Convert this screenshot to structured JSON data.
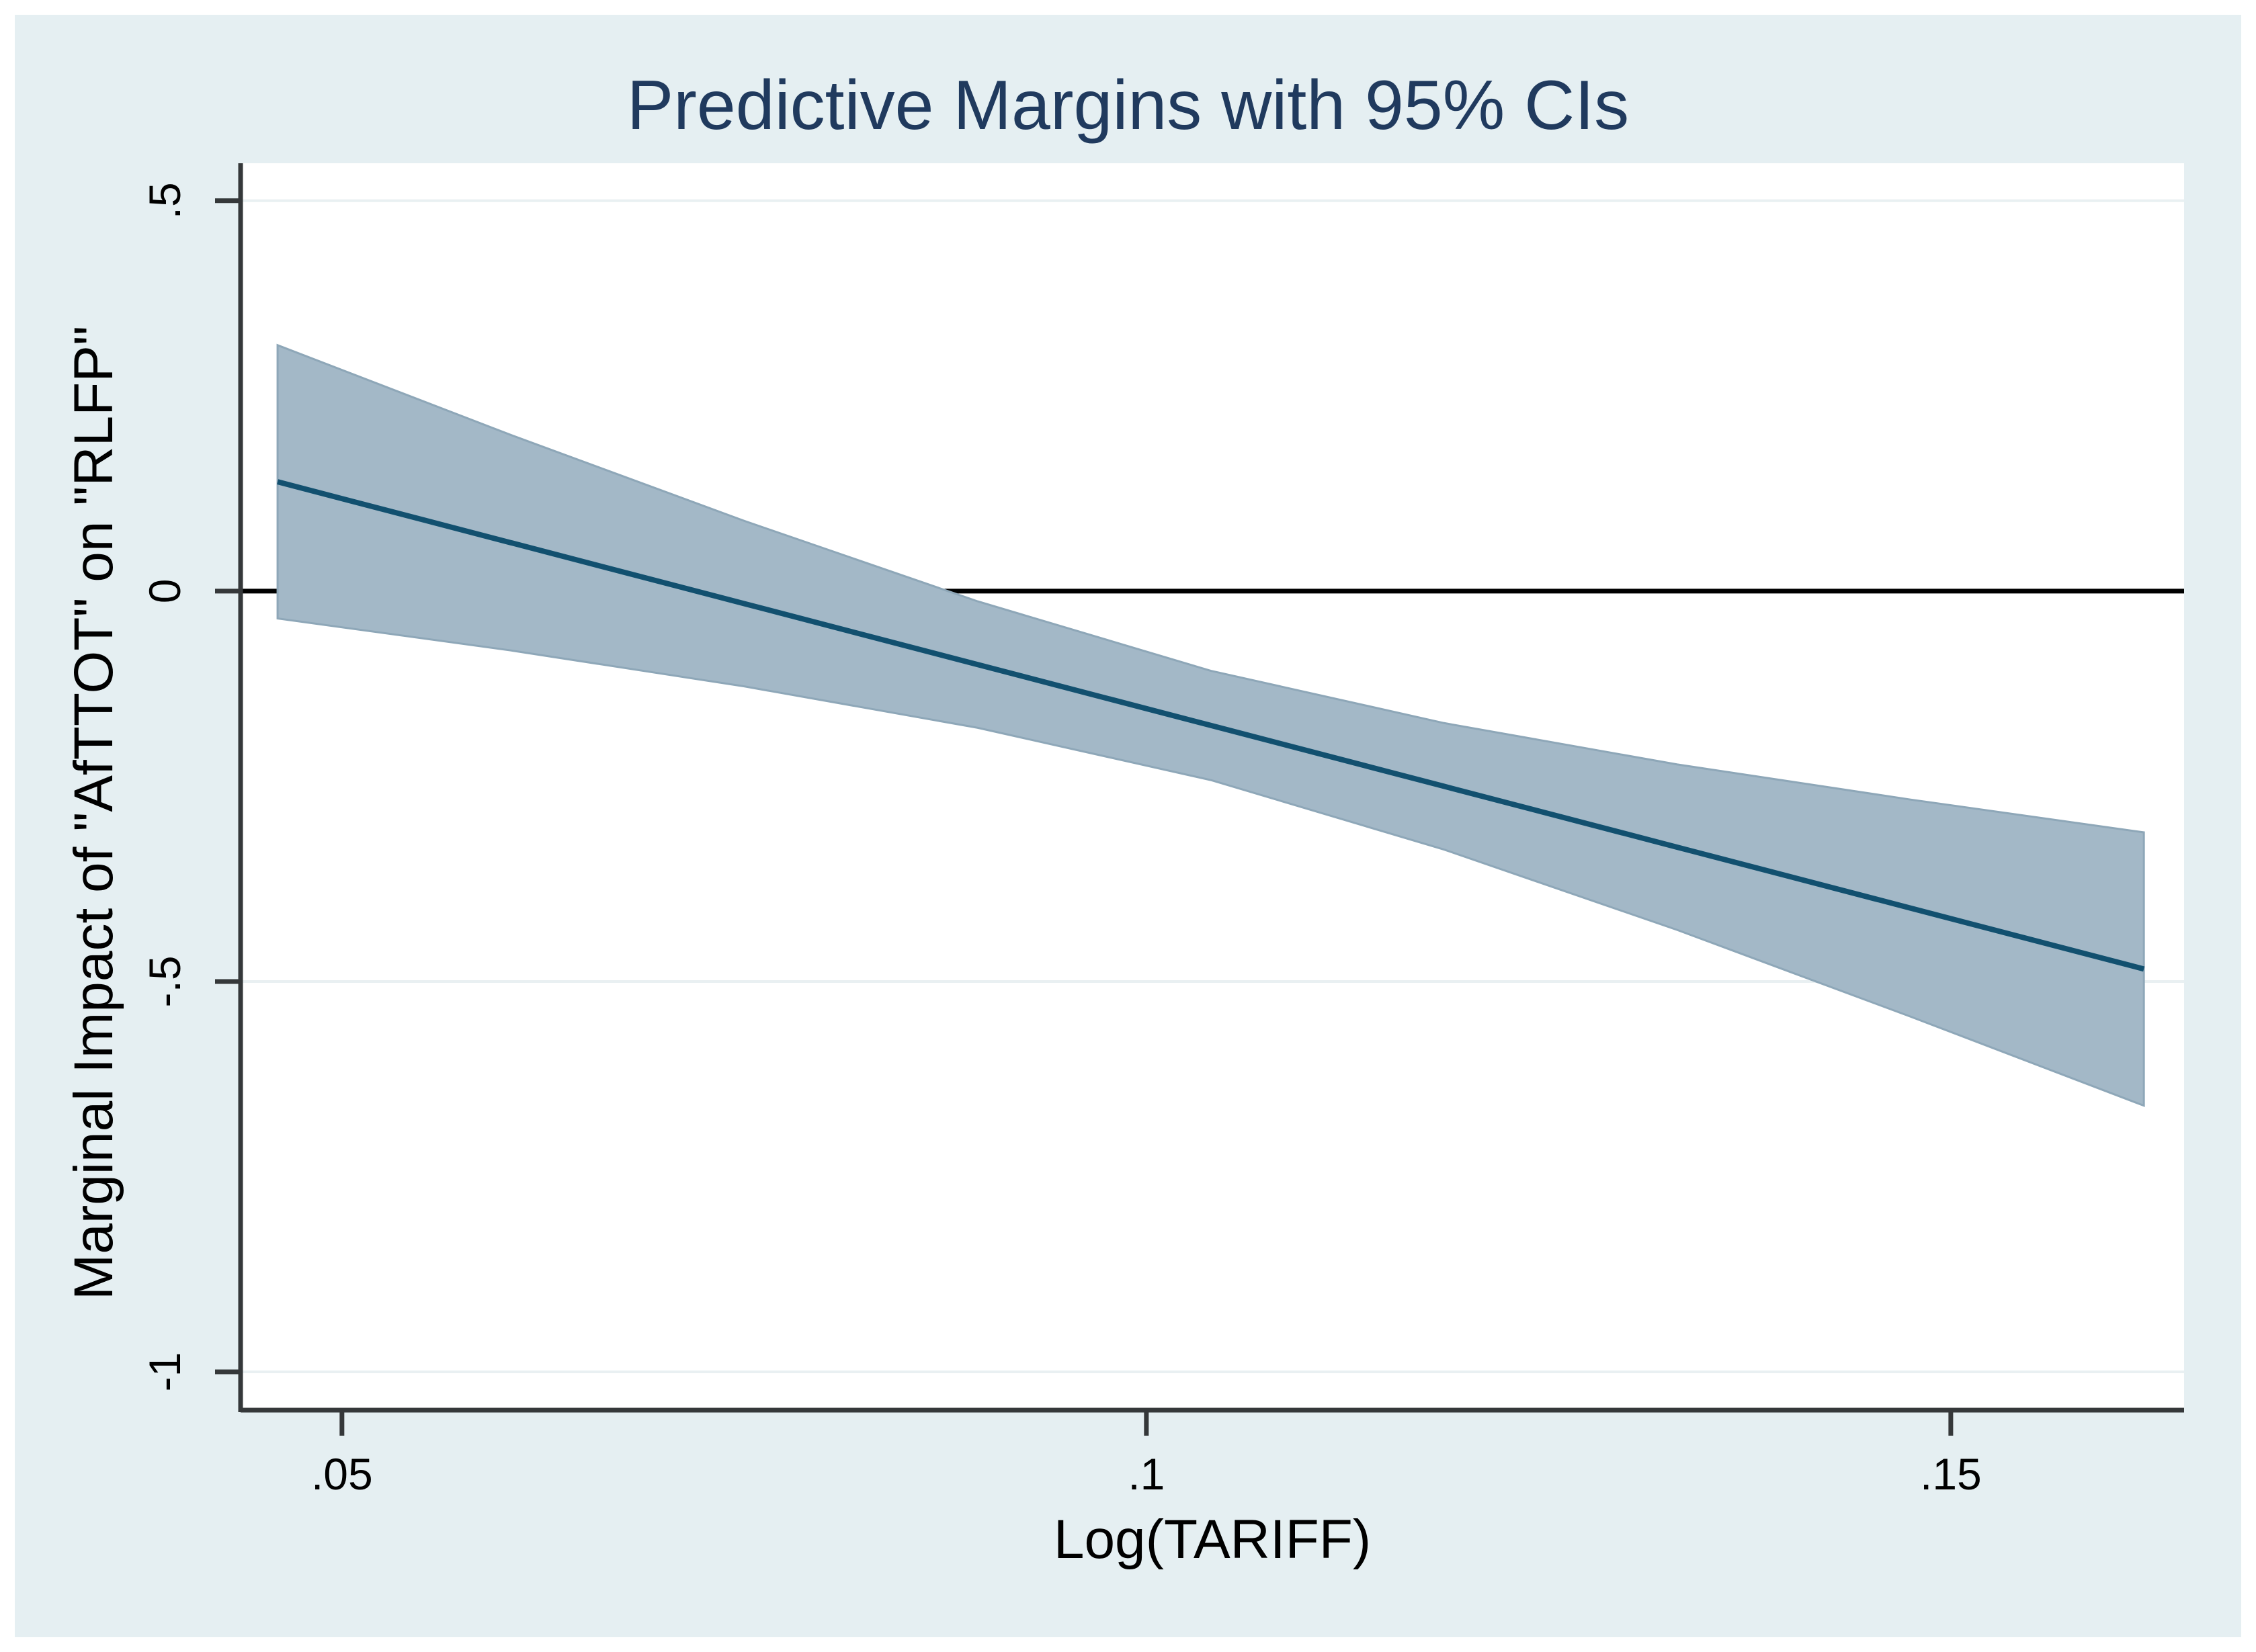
{
  "page": {
    "frame_background": "#ffffff",
    "canvas_background": "#e5eff2"
  },
  "chart_data": {
    "type": "area",
    "title": "Predictive Margins with 95% CIs",
    "xlabel": "Log(TARIFF)",
    "ylabel": "Marginal Impact of \"AfTTOT\" on \"RLFP\"",
    "x": [
      0.046,
      0.0605,
      0.075,
      0.0895,
      0.104,
      0.1185,
      0.133,
      0.1475,
      0.162
    ],
    "series": [
      {
        "name": "predictive-margin",
        "values": [
          0.14,
          0.062,
          -0.016,
          -0.094,
          -0.172,
          -0.25,
          -0.328,
          -0.406,
          -0.484
        ]
      },
      {
        "name": "ci-95-upper",
        "values": [
          0.315,
          0.2,
          0.09,
          -0.013,
          -0.102,
          -0.169,
          -0.222,
          -0.267,
          -0.309
        ]
      },
      {
        "name": "ci-95-lower",
        "values": [
          -0.035,
          -0.076,
          -0.122,
          -0.175,
          -0.242,
          -0.331,
          -0.434,
          -0.545,
          -0.659
        ]
      }
    ],
    "xlim": [
      0.0437,
      0.1645
    ],
    "ylim": [
      -1.049,
      0.548
    ],
    "xticks": {
      "values": [
        0.05,
        0.1,
        0.15
      ],
      "labels": [
        ".05",
        ".1",
        ".15"
      ]
    },
    "yticks": {
      "values": [
        0.5,
        0,
        -0.5,
        -1
      ],
      "labels": [
        ".5",
        "0",
        "-.5",
        "-1"
      ]
    },
    "grid": "horizontal-light",
    "zero_line_y": 0,
    "legend": "none",
    "colors": {
      "band_fill": "#a3b8c7",
      "band_edge": "#8ea7b8",
      "mean_line": "#12506f",
      "title_text": "#203a5e",
      "axis_line": "#35383a",
      "grid_line": "#e9f0f2",
      "zero_line": "#000000",
      "tick_text": "#000000",
      "plot_background": "#ffffff"
    }
  }
}
